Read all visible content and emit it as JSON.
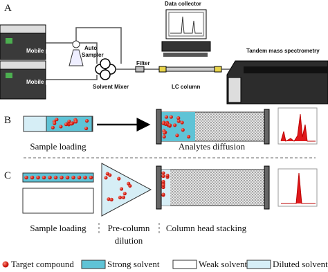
{
  "panels": {
    "a": {
      "label": "A",
      "data_collector": "Data collector",
      "ms": "Tandem mass spectrometry",
      "phase_b": "Mobile phase B",
      "phase_a": "Mobile phase A",
      "auto_sampler": [
        "Auto",
        "Sampler"
      ],
      "mixer": "Solvent Mixer",
      "filter": "Filter",
      "column": "LC column"
    },
    "b": {
      "label": "B",
      "steps": [
        "Sample loading",
        "Analytes diffusion"
      ]
    },
    "c": {
      "label": "C",
      "steps": [
        [
          "Sample loading"
        ],
        [
          "Pre-column",
          "dilution"
        ],
        [
          "Column head stacking"
        ]
      ]
    }
  },
  "legend": [
    "Target compound",
    "Strong solvent",
    "Weak solvent",
    "Diluted solvent"
  ]
}
